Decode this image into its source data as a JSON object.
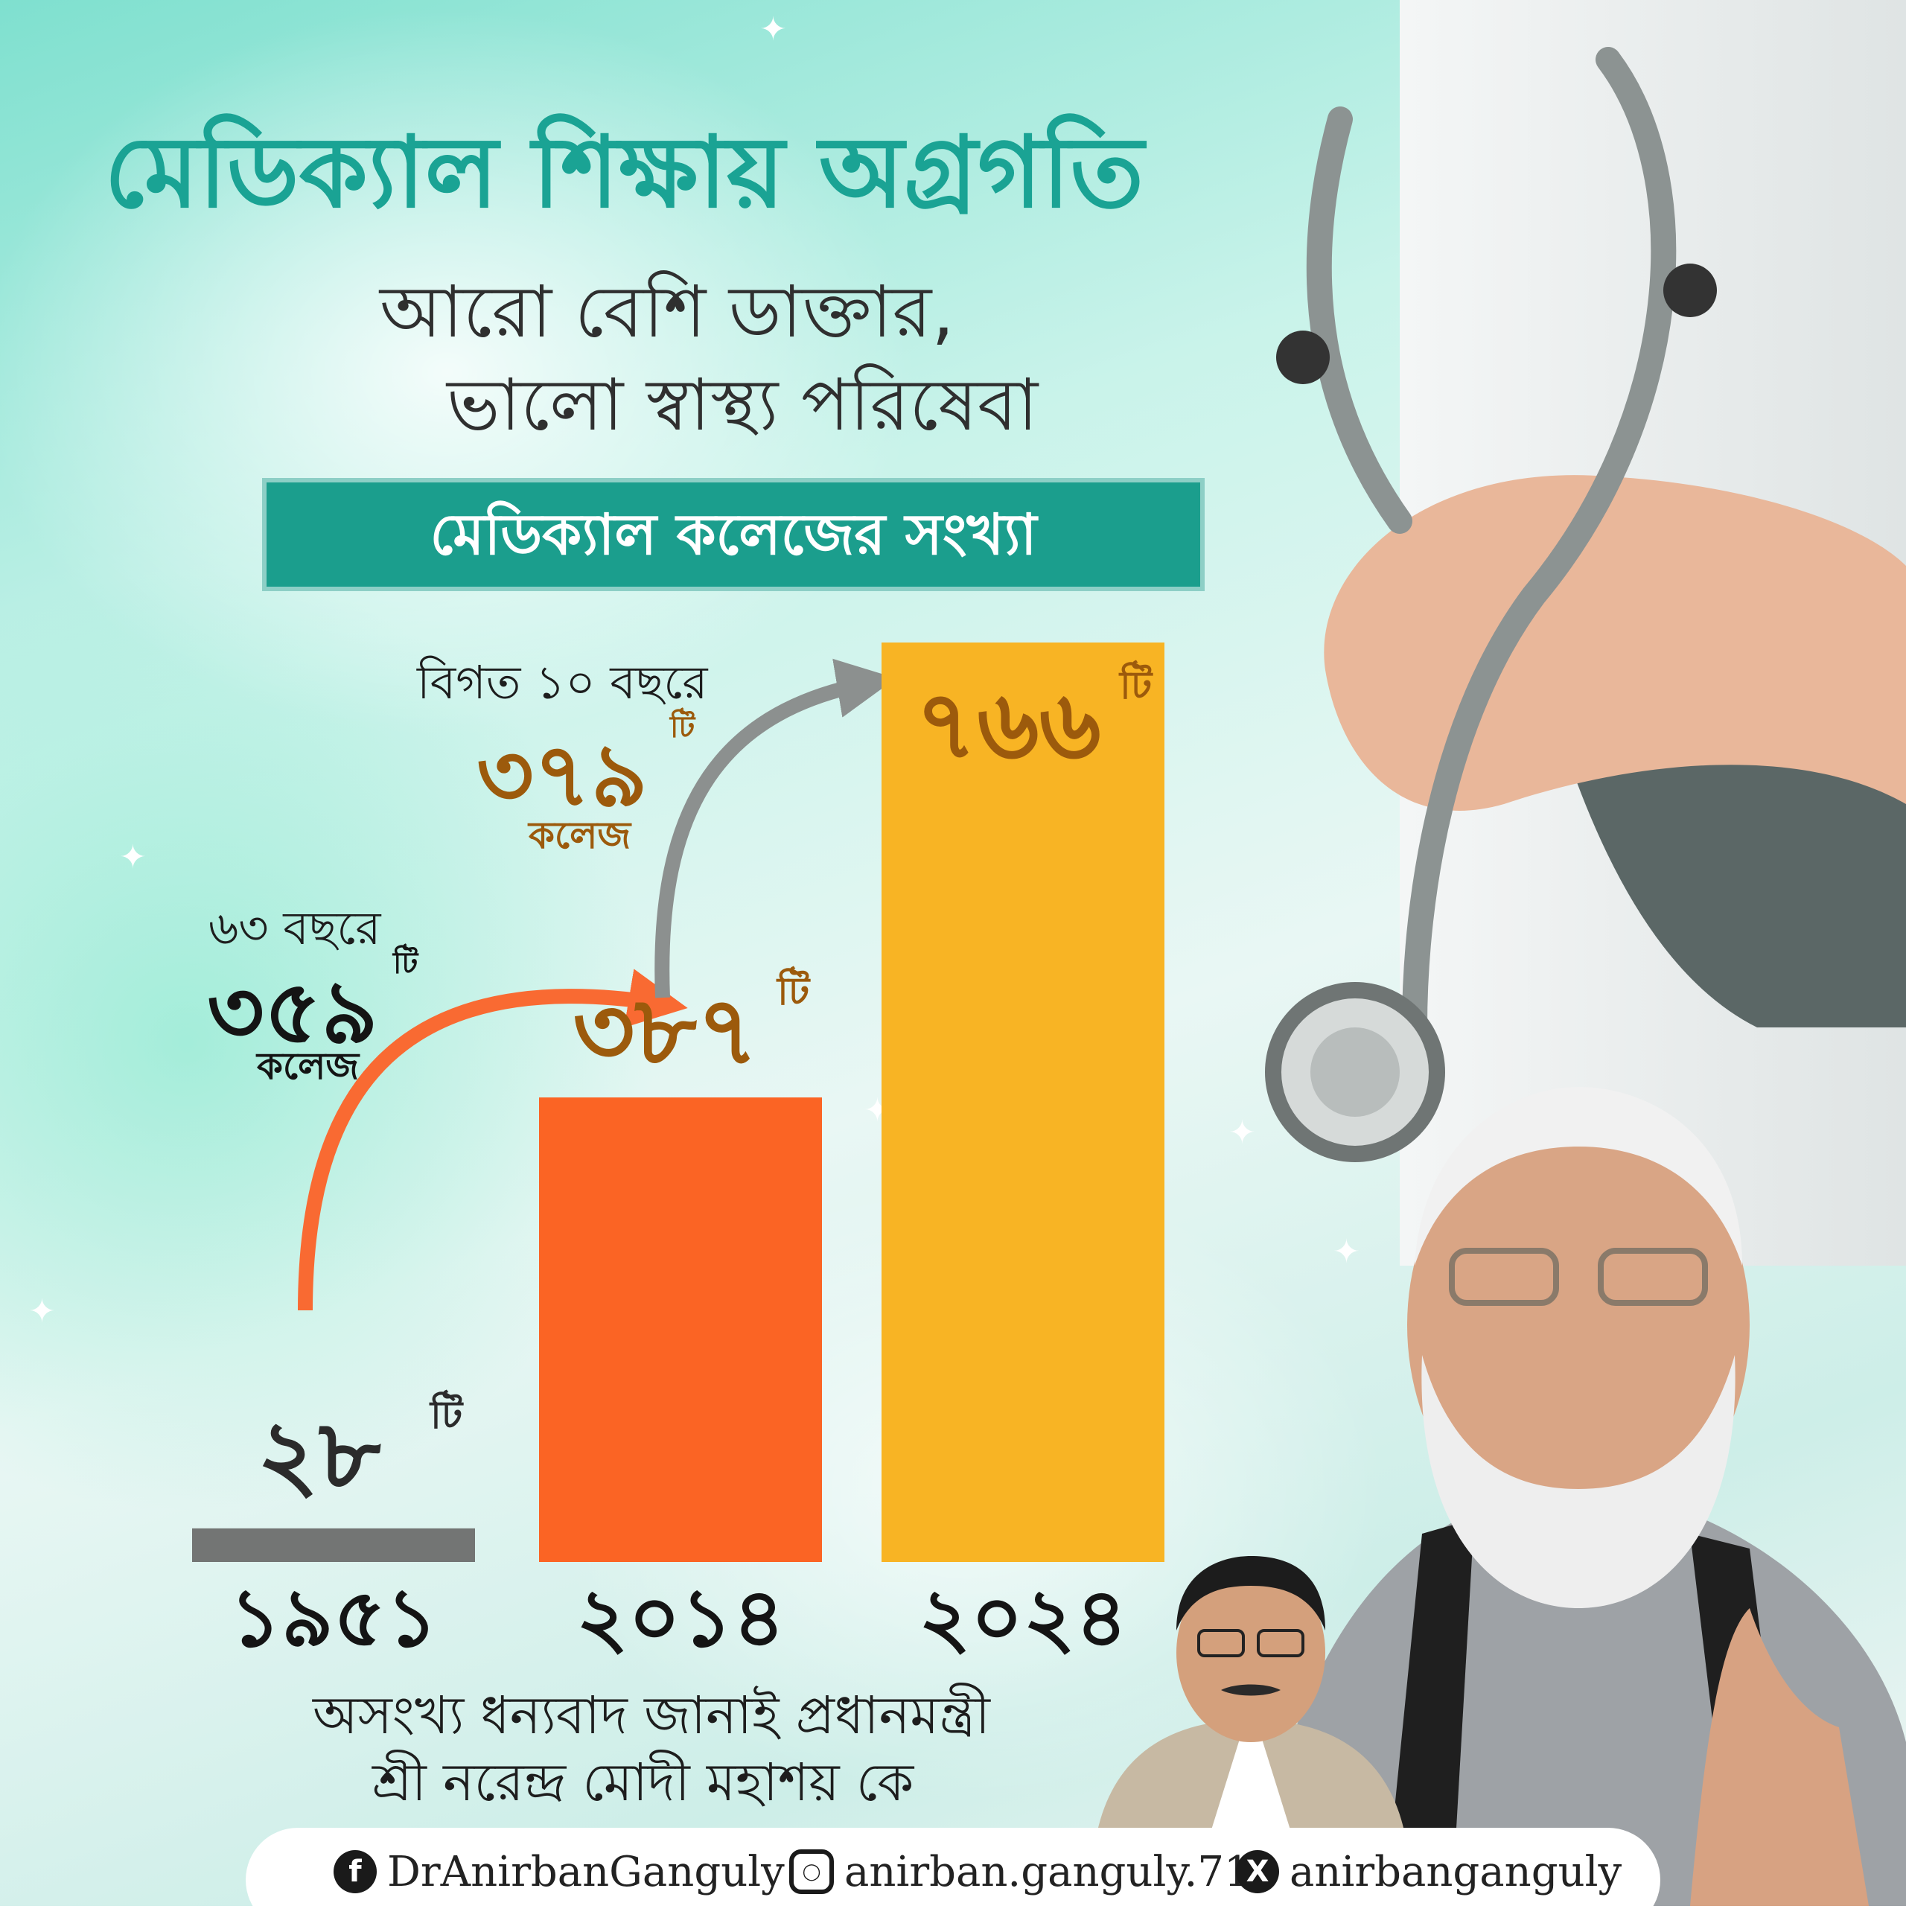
{
  "title": "মেডিক্যাল শিক্ষায় অগ্রগতি",
  "subtitle_line1": "আরো বেশি ডাক্তার,",
  "subtitle_line2": "ভালো স্বাস্থ্য পরিষেবা",
  "banner": "মেডিক্যাল কলেজের সংখ্যা",
  "annotations": {
    "first": {
      "period": "৬৩ বছরে",
      "value": "৩৫৯",
      "unit": "টি",
      "label": "কলেজ"
    },
    "second": {
      "period": "বিগত ১০ বছরে",
      "value": "৩৭৯",
      "unit": "টি",
      "label": "কলেজ"
    }
  },
  "bar_unit": "টি",
  "thanks_line1": "অসংখ্য ধন্যবাদ জানাই প্রধানমন্ত্রী",
  "thanks_line2": "শ্রী নরেন্দ্র মোদী মহাশয় কে",
  "social": {
    "facebook": "DrAnirbanGanguly",
    "instagram": "anirban.ganguly.71",
    "x": "anirbanganguly"
  },
  "colors": {
    "title": "#1aa394",
    "banner": "#1b9e8d",
    "bar_1951": "#737574",
    "bar_2014": "#fb6424",
    "bar_2024": "#f8b424",
    "value_brown": "#9c5a0c",
    "arrow_orange": "#f96a32",
    "arrow_gray": "#8c908f"
  },
  "chart_data": {
    "type": "bar",
    "categories": [
      "১৯৫১",
      "২০১৪",
      "২০২৪"
    ],
    "values": [
      28,
      387,
      766
    ],
    "value_labels": [
      "২৮",
      "৩৮৭",
      "৭৬৬"
    ],
    "title": "মেডিক্যাল কলেজের সংখ্যা",
    "ylim": [
      0,
      766
    ],
    "grid": false,
    "legend": "none"
  }
}
